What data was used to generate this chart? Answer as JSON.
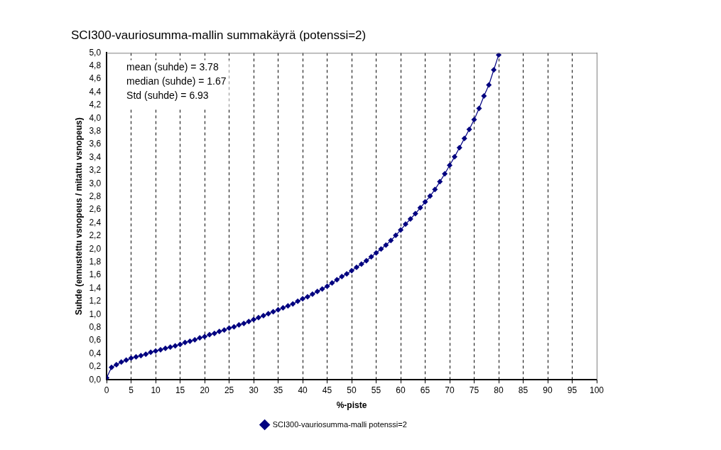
{
  "chart_data": {
    "type": "line",
    "title": "SCI300-vauriosumma-mallin summakäyrä (potenssi=2)",
    "xlabel": "%-piste",
    "ylabel": "Suhde (ennustettu vsnopeus / mitattu vsnopeus)",
    "x": [
      0,
      1,
      2,
      3,
      4,
      5,
      6,
      7,
      8,
      9,
      10,
      11,
      12,
      13,
      14,
      15,
      16,
      17,
      18,
      19,
      20,
      21,
      22,
      23,
      24,
      25,
      26,
      27,
      28,
      29,
      30,
      31,
      32,
      33,
      34,
      35,
      36,
      37,
      38,
      39,
      40,
      41,
      42,
      43,
      44,
      45,
      46,
      47,
      48,
      49,
      50,
      51,
      52,
      53,
      54,
      55,
      56,
      57,
      58,
      59,
      60,
      61,
      62,
      63,
      64,
      65,
      66,
      67,
      68,
      69,
      70,
      71,
      72,
      73,
      74,
      75,
      76,
      77,
      78,
      79,
      80
    ],
    "series": [
      {
        "name": "SCI300-vauriosumma-malli potenssi=2",
        "color": "#000080",
        "values": [
          0.03,
          0.19,
          0.23,
          0.27,
          0.3,
          0.33,
          0.35,
          0.37,
          0.39,
          0.42,
          0.44,
          0.46,
          0.48,
          0.5,
          0.52,
          0.54,
          0.57,
          0.59,
          0.61,
          0.64,
          0.66,
          0.69,
          0.71,
          0.74,
          0.76,
          0.79,
          0.81,
          0.84,
          0.86,
          0.89,
          0.92,
          0.95,
          0.98,
          1.01,
          1.04,
          1.07,
          1.1,
          1.13,
          1.16,
          1.2,
          1.24,
          1.27,
          1.31,
          1.35,
          1.39,
          1.43,
          1.48,
          1.53,
          1.58,
          1.62,
          1.67,
          1.72,
          1.77,
          1.82,
          1.88,
          1.94,
          2.0,
          2.06,
          2.13,
          2.21,
          2.29,
          2.38,
          2.46,
          2.54,
          2.63,
          2.72,
          2.81,
          2.91,
          3.03,
          3.15,
          3.28,
          3.41,
          3.55,
          3.69,
          3.83,
          3.98,
          4.15,
          4.34,
          4.51,
          4.74,
          4.97
        ]
      }
    ],
    "xlim": [
      0,
      100
    ],
    "xticks": [
      0,
      5,
      10,
      15,
      20,
      25,
      30,
      35,
      40,
      45,
      50,
      55,
      60,
      65,
      70,
      75,
      80,
      85,
      90,
      95,
      100
    ],
    "ylim": [
      0,
      5
    ],
    "yticks": [
      {
        "value": 0,
        "label": "0,0"
      },
      {
        "value": 0.2,
        "label": "0,2"
      },
      {
        "value": 0.4,
        "label": "0,4"
      },
      {
        "value": 0.6,
        "label": "0,6"
      },
      {
        "value": 0.8,
        "label": "0,8"
      },
      {
        "value": 1,
        "label": "1,0"
      },
      {
        "value": 1.2,
        "label": "1,2"
      },
      {
        "value": 1.4,
        "label": "1,4"
      },
      {
        "value": 1.6,
        "label": "1,6"
      },
      {
        "value": 1.8,
        "label": "1,8"
      },
      {
        "value": 2,
        "label": "2,0"
      },
      {
        "value": 2.2,
        "label": "2,2"
      },
      {
        "value": 2.4,
        "label": "2,4"
      },
      {
        "value": 2.6,
        "label": "2,6"
      },
      {
        "value": 2.8,
        "label": "2,8"
      },
      {
        "value": 3,
        "label": "3,0"
      },
      {
        "value": 3.2,
        "label": "3,2"
      },
      {
        "value": 3.4,
        "label": "3,4"
      },
      {
        "value": 3.6,
        "label": "3,6"
      },
      {
        "value": 3.8,
        "label": "3,8"
      },
      {
        "value": 4,
        "label": "4,0"
      },
      {
        "value": 4.2,
        "label": "4,2"
      },
      {
        "value": 4.4,
        "label": "4,4"
      },
      {
        "value": 4.6,
        "label": "4,6"
      },
      {
        "value": 4.8,
        "label": "4,8"
      },
      {
        "value": 5,
        "label": "5,0"
      }
    ],
    "annotations": [
      "mean (suhde) = 3.78",
      "median (suhde) = 1.67",
      "Std (suhde) = 6.93"
    ],
    "grid": "x",
    "legend": "bottom",
    "marker": "diamond",
    "line_style": "solid"
  }
}
